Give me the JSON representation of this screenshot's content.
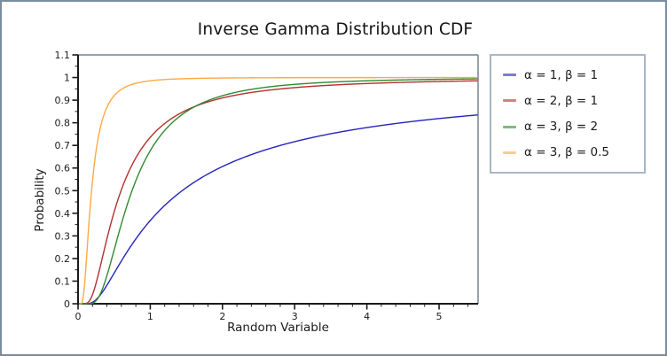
{
  "window": {
    "background": "#ffffff",
    "border_color": "#7b8ca0"
  },
  "chart_data": {
    "type": "line",
    "title": "Inverse Gamma Distribution CDF",
    "xlabel": "Random Variable",
    "ylabel": "Probability",
    "xlim": [
      0,
      5.54
    ],
    "ylim": [
      0,
      1.1
    ],
    "grid": false,
    "legend_position": "right",
    "axis_color": "#1a1a1a",
    "frame_color": "#8494a5",
    "x_ticks": {
      "values": [
        0,
        1,
        2,
        3,
        4,
        5
      ],
      "labels": [
        "0",
        "1",
        "2",
        "3",
        "4",
        "5"
      ],
      "minor_step": 0.2
    },
    "y_ticks": {
      "values": [
        0,
        0.1,
        0.2,
        0.3,
        0.4,
        0.5,
        0.6,
        0.7,
        0.8,
        0.9,
        1.0,
        1.1
      ],
      "labels": [
        "0",
        "0.1",
        "0.2",
        "0.3",
        "0.4",
        "0.5",
        "0.6",
        "0.7",
        "0.8",
        "0.9",
        "1",
        "1.1"
      ],
      "minor_step": 0.05
    },
    "series": [
      {
        "name": "α = 1, β = 1",
        "alpha": 1,
        "beta": 1,
        "color": "#2424bd",
        "points": [
          [
            0.1,
            0.0
          ],
          [
            0.2,
            0.0067
          ],
          [
            0.3,
            0.0357
          ],
          [
            0.4,
            0.0821
          ],
          [
            0.5,
            0.1353
          ],
          [
            0.75,
            0.2636
          ],
          [
            1,
            0.3679
          ],
          [
            1.5,
            0.5134
          ],
          [
            2,
            0.6065
          ],
          [
            2.5,
            0.6703
          ],
          [
            3,
            0.7165
          ],
          [
            3.5,
            0.7515
          ],
          [
            4,
            0.7788
          ],
          [
            4.5,
            0.8007
          ],
          [
            5,
            0.8187
          ],
          [
            5.5,
            0.8338
          ]
        ]
      },
      {
        "name": "α = 2, β = 1",
        "alpha": 2,
        "beta": 1,
        "color": "#b23030",
        "points": [
          [
            0.2,
            0.0404
          ],
          [
            0.3,
            0.1546
          ],
          [
            0.4,
            0.2873
          ],
          [
            0.5,
            0.406
          ],
          [
            0.75,
            0.6151
          ],
          [
            1,
            0.7358
          ],
          [
            1.5,
            0.8557
          ],
          [
            2,
            0.9098
          ],
          [
            2.5,
            0.9384
          ],
          [
            3,
            0.9554
          ],
          [
            3.5,
            0.9662
          ],
          [
            4,
            0.9735
          ],
          [
            4.5,
            0.9786
          ],
          [
            5,
            0.9825
          ],
          [
            5.5,
            0.9854
          ]
        ]
      },
      {
        "name": "α = 3, β = 2",
        "alpha": 3,
        "beta": 2,
        "color": "#2f8b2f",
        "points": [
          [
            0.2,
            0.0028
          ],
          [
            0.3,
            0.038
          ],
          [
            0.4,
            0.1247
          ],
          [
            0.5,
            0.2381
          ],
          [
            0.75,
            0.5034
          ],
          [
            1,
            0.6767
          ],
          [
            1.5,
            0.8494
          ],
          [
            2,
            0.9197
          ],
          [
            2.5,
            0.9526
          ],
          [
            3,
            0.9698
          ],
          [
            3.5,
            0.9796
          ],
          [
            4,
            0.9856
          ],
          [
            4.5,
            0.9895
          ],
          [
            5,
            0.9921
          ],
          [
            5.5,
            0.9941
          ]
        ]
      },
      {
        "name": "α = 3, β = 0.5",
        "alpha": 3,
        "beta": 0.5,
        "color": "#ffa845",
        "points": [
          [
            0.08,
            0.0517
          ],
          [
            0.1,
            0.1247
          ],
          [
            0.15,
            0.3528
          ],
          [
            0.2,
            0.5438
          ],
          [
            0.25,
            0.6767
          ],
          [
            0.3,
            0.766
          ],
          [
            0.4,
            0.8685
          ],
          [
            0.5,
            0.9197
          ],
          [
            0.75,
            0.9698
          ],
          [
            1,
            0.9856
          ],
          [
            1.5,
            0.9951
          ],
          [
            2,
            0.9978
          ],
          [
            3,
            0.9994
          ],
          [
            4,
            0.9998
          ],
          [
            5,
            0.9999
          ],
          [
            5.5,
            0.9999
          ]
        ]
      }
    ],
    "legend_border_color": "#a9b7c6"
  }
}
